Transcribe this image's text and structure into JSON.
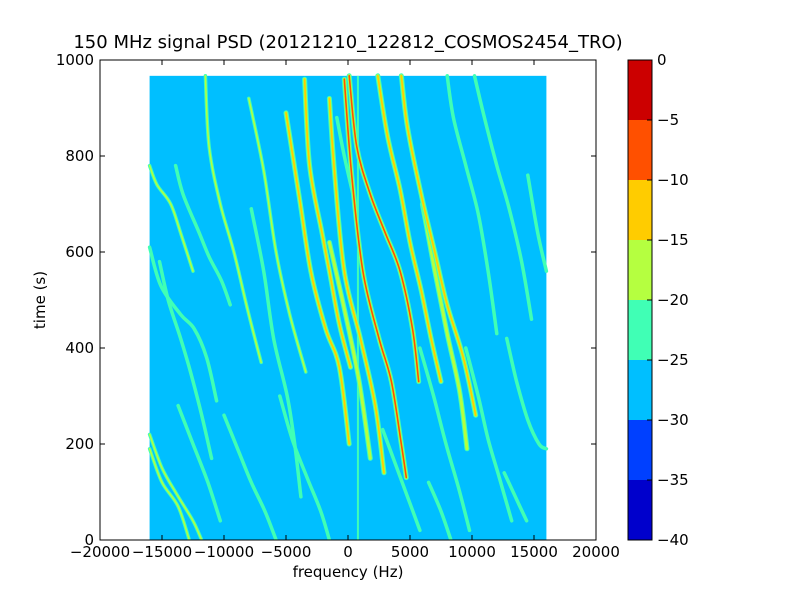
{
  "chart_data": {
    "type": "heatmap",
    "title": "150 MHz signal PSD (20121210_122812_COSMOS2454_TRO)",
    "xlabel": "frequency (Hz)",
    "ylabel": "time (s)",
    "xlim": [
      -20000,
      20000
    ],
    "ylim": [
      0,
      1000
    ],
    "x_ticks": [
      -20000,
      -15000,
      -10000,
      -5000,
      0,
      5000,
      10000,
      15000,
      20000
    ],
    "y_ticks": [
      0,
      200,
      400,
      600,
      800,
      1000
    ],
    "data_extent": {
      "x": [
        -16000,
        16000
      ],
      "y": [
        0,
        967
      ]
    },
    "background_level": -27.5,
    "background_color": "#00bfff",
    "colorbar": {
      "ticks": [
        0,
        -5,
        -10,
        -15,
        -20,
        -25,
        -30,
        -35,
        -40
      ],
      "levels": [
        {
          "from": -40,
          "to": -35,
          "color": "#0000cc"
        },
        {
          "from": -35,
          "to": -30,
          "color": "#0040ff"
        },
        {
          "from": -30,
          "to": -25,
          "color": "#00bfff"
        },
        {
          "from": -25,
          "to": -20,
          "color": "#40ffb5"
        },
        {
          "from": -20,
          "to": -15,
          "color": "#b5ff40"
        },
        {
          "from": -15,
          "to": -10,
          "color": "#ffcc00"
        },
        {
          "from": -10,
          "to": -5,
          "color": "#ff5000"
        },
        {
          "from": -5,
          "to": 0,
          "color": "#cc0000"
        }
      ]
    },
    "constant_line": {
      "x": 800,
      "y_range": [
        0,
        967
      ],
      "level": -22
    },
    "traces": [
      {
        "level": -5,
        "points": [
          [
            100,
            967
          ],
          [
            700,
            820
          ],
          [
            1800,
            720
          ],
          [
            3000,
            640
          ],
          [
            4200,
            560
          ],
          [
            5200,
            440
          ],
          [
            5700,
            330
          ]
        ]
      },
      {
        "level": -8,
        "points": [
          [
            -300,
            960
          ],
          [
            300,
            760
          ],
          [
            1200,
            560
          ],
          [
            2500,
            420
          ],
          [
            3500,
            330
          ],
          [
            4300,
            200
          ],
          [
            4700,
            130
          ]
        ]
      },
      {
        "level": -10,
        "points": [
          [
            -1500,
            920
          ],
          [
            -1100,
            770
          ],
          [
            -300,
            560
          ],
          [
            1000,
            420
          ],
          [
            2200,
            280
          ],
          [
            2900,
            140
          ]
        ]
      },
      {
        "level": -12,
        "points": [
          [
            -5000,
            890
          ],
          [
            -3900,
            710
          ],
          [
            -3000,
            560
          ],
          [
            -1800,
            440
          ],
          [
            -700,
            360
          ],
          [
            100,
            200
          ]
        ]
      },
      {
        "level": -14,
        "points": [
          [
            -3500,
            960
          ],
          [
            -3100,
            780
          ],
          [
            -2100,
            640
          ],
          [
            -1500,
            560
          ],
          [
            -700,
            450
          ],
          [
            200,
            360
          ]
        ]
      },
      {
        "level": -12,
        "points": [
          [
            2400,
            967
          ],
          [
            3200,
            840
          ],
          [
            4200,
            730
          ],
          [
            5000,
            620
          ],
          [
            5900,
            520
          ],
          [
            6700,
            420
          ],
          [
            7500,
            330
          ]
        ]
      },
      {
        "level": -14,
        "points": [
          [
            4300,
            967
          ],
          [
            4800,
            860
          ],
          [
            5900,
            720
          ],
          [
            7000,
            600
          ],
          [
            8000,
            490
          ],
          [
            9300,
            380
          ],
          [
            10300,
            260
          ]
        ]
      },
      {
        "level": -15,
        "points": [
          [
            -1500,
            620
          ],
          [
            -200,
            470
          ],
          [
            900,
            330
          ],
          [
            1800,
            170
          ]
        ]
      },
      {
        "level": -15,
        "points": [
          [
            6000,
            700
          ],
          [
            7000,
            560
          ],
          [
            8000,
            430
          ],
          [
            9000,
            310
          ],
          [
            9600,
            190
          ]
        ]
      },
      {
        "level": -17,
        "points": [
          [
            -8000,
            920
          ],
          [
            -6800,
            770
          ],
          [
            -5800,
            600
          ],
          [
            -4700,
            470
          ],
          [
            -3400,
            350
          ]
        ]
      },
      {
        "level": -17,
        "points": [
          [
            -11500,
            967
          ],
          [
            -11200,
            820
          ],
          [
            -10300,
            700
          ],
          [
            -9200,
            600
          ],
          [
            -8100,
            480
          ],
          [
            -7000,
            370
          ]
        ]
      },
      {
        "level": -18,
        "points": [
          [
            -16000,
            220
          ],
          [
            -15000,
            150
          ],
          [
            -13800,
            95
          ],
          [
            -12500,
            40
          ],
          [
            -11800,
            0
          ]
        ]
      },
      {
        "level": -18,
        "points": [
          [
            -16000,
            190
          ],
          [
            -15000,
            120
          ],
          [
            -13700,
            70
          ],
          [
            -12800,
            0
          ]
        ]
      },
      {
        "level": -19,
        "points": [
          [
            -16000,
            780
          ],
          [
            -15400,
            740
          ],
          [
            -14300,
            700
          ],
          [
            -13500,
            640
          ],
          [
            -12500,
            560
          ]
        ]
      },
      {
        "level": -20,
        "points": [
          [
            -16000,
            610
          ],
          [
            -15100,
            530
          ],
          [
            -13500,
            470
          ],
          [
            -12400,
            440
          ],
          [
            -11400,
            380
          ],
          [
            -10600,
            290
          ]
        ]
      },
      {
        "level": -20,
        "points": [
          [
            -13900,
            780
          ],
          [
            -13300,
            720
          ],
          [
            -12000,
            640
          ],
          [
            -11200,
            590
          ],
          [
            -10200,
            540
          ],
          [
            -9500,
            490
          ]
        ]
      },
      {
        "level": -20,
        "points": [
          [
            -15200,
            580
          ],
          [
            -14500,
            500
          ],
          [
            -13500,
            420
          ],
          [
            -12700,
            350
          ],
          [
            -11800,
            260
          ],
          [
            -11000,
            170
          ]
        ]
      },
      {
        "level": -20,
        "points": [
          [
            -7800,
            690
          ],
          [
            -6800,
            560
          ],
          [
            -6000,
            420
          ],
          [
            -4900,
            300
          ],
          [
            -4300,
            200
          ],
          [
            -3800,
            90
          ]
        ]
      },
      {
        "level": -21,
        "points": [
          [
            -5500,
            300
          ],
          [
            -4500,
            210
          ],
          [
            -3300,
            130
          ],
          [
            -2200,
            60
          ],
          [
            -1500,
            0
          ]
        ]
      },
      {
        "level": -21,
        "points": [
          [
            -10000,
            260
          ],
          [
            -8900,
            190
          ],
          [
            -7800,
            120
          ],
          [
            -6700,
            60
          ],
          [
            -5800,
            0
          ]
        ]
      },
      {
        "level": -21,
        "points": [
          [
            -13700,
            280
          ],
          [
            -12500,
            200
          ],
          [
            -11300,
            120
          ],
          [
            -10300,
            40
          ]
        ]
      },
      {
        "level": -20,
        "points": [
          [
            8000,
            967
          ],
          [
            8500,
            880
          ],
          [
            9500,
            780
          ],
          [
            10500,
            680
          ],
          [
            11300,
            560
          ],
          [
            12000,
            430
          ]
        ]
      },
      {
        "level": -20,
        "points": [
          [
            10200,
            967
          ],
          [
            11000,
            880
          ],
          [
            12000,
            780
          ],
          [
            13000,
            690
          ],
          [
            14000,
            580
          ],
          [
            14800,
            460
          ]
        ]
      },
      {
        "level": -20,
        "points": [
          [
            5800,
            400
          ],
          [
            6900,
            300
          ],
          [
            7900,
            200
          ],
          [
            8900,
            110
          ],
          [
            9800,
            20
          ]
        ]
      },
      {
        "level": -20,
        "points": [
          [
            9500,
            400
          ],
          [
            10500,
            300
          ],
          [
            11300,
            210
          ],
          [
            12200,
            130
          ],
          [
            13200,
            40
          ]
        ]
      },
      {
        "level": -20,
        "points": [
          [
            12800,
            420
          ],
          [
            13600,
            330
          ],
          [
            14500,
            250
          ],
          [
            15400,
            200
          ],
          [
            16000,
            190
          ]
        ]
      },
      {
        "level": -21,
        "points": [
          [
            14500,
            760
          ],
          [
            15300,
            640
          ],
          [
            16000,
            560
          ]
        ]
      },
      {
        "level": -21,
        "points": [
          [
            2800,
            230
          ],
          [
            3800,
            160
          ],
          [
            4800,
            90
          ],
          [
            5800,
            20
          ]
        ]
      },
      {
        "level": -21,
        "points": [
          [
            -900,
            880
          ],
          [
            -300,
            800
          ],
          [
            400,
            720
          ]
        ]
      },
      {
        "level": -22,
        "points": [
          [
            6500,
            120
          ],
          [
            7500,
            60
          ],
          [
            8300,
            0
          ]
        ]
      },
      {
        "level": -22,
        "points": [
          [
            12600,
            140
          ],
          [
            13500,
            90
          ],
          [
            14400,
            40
          ]
        ]
      }
    ]
  }
}
